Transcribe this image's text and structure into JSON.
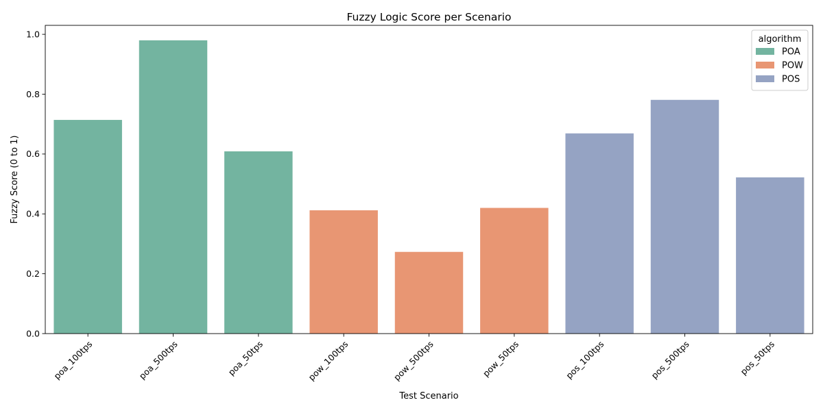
{
  "chart_data": {
    "type": "bar",
    "title": "Fuzzy Logic Score per Scenario",
    "xlabel": "Test Scenario",
    "ylabel": "Fuzzy Score (0 to 1)",
    "categories": [
      "poa_100tps",
      "poa_500tps",
      "poa_50tps",
      "pow_100tps",
      "pow_500tps",
      "pow_50tps",
      "pos_100tps",
      "pos_500tps",
      "pos_50tps"
    ],
    "values": [
      0.714,
      0.98,
      0.609,
      0.412,
      0.273,
      0.42,
      0.669,
      0.781,
      0.522
    ],
    "groups": [
      "POA",
      "POA",
      "POA",
      "POW",
      "POW",
      "POW",
      "POS",
      "POS",
      "POS"
    ],
    "ylim": [
      0,
      1.03
    ],
    "yticks": [
      "0.0",
      "0.2",
      "0.4",
      "0.6",
      "0.8",
      "1.0"
    ],
    "grid": false,
    "legend": {
      "title": "algorithm",
      "placement": "top-right",
      "entries": [
        {
          "name": "POA",
          "color": "#73b4a0"
        },
        {
          "name": "POW",
          "color": "#e89673"
        },
        {
          "name": "POS",
          "color": "#95a3c3"
        }
      ]
    }
  }
}
